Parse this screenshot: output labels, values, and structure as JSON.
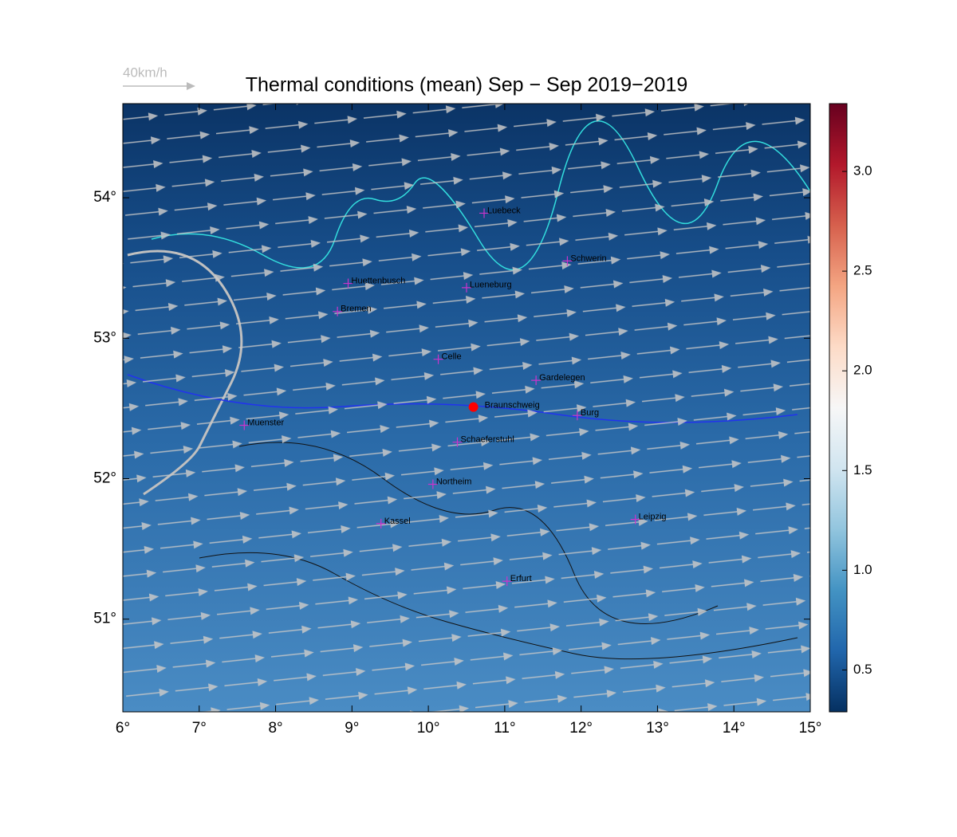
{
  "chart_data": {
    "type": "map",
    "title": "Thermal conditions (mean) Sep − Sep  2019−2019",
    "wind_scale_label": "40km/h",
    "xlim": [
      6,
      15
    ],
    "ylim": [
      50.34,
      54.67
    ],
    "xticks": [
      {
        "value": 6,
        "label": "6°"
      },
      {
        "value": 7,
        "label": "7°"
      },
      {
        "value": 8,
        "label": "8°"
      },
      {
        "value": 9,
        "label": "9°"
      },
      {
        "value": 10,
        "label": "10°"
      },
      {
        "value": 11,
        "label": "11°"
      },
      {
        "value": 12,
        "label": "12°"
      },
      {
        "value": 13,
        "label": "13°"
      },
      {
        "value": 14,
        "label": "14°"
      },
      {
        "value": 15,
        "label": "15°"
      }
    ],
    "yticks": [
      {
        "value": 51,
        "label": "51°"
      },
      {
        "value": 52,
        "label": "52°"
      },
      {
        "value": 53,
        "label": "53°"
      },
      {
        "value": 54,
        "label": "54°"
      }
    ],
    "clim": [
      0.29,
      3.34
    ],
    "cticks": [
      0.5,
      {
        "value": 1,
        "label": "1.0"
      },
      1.5,
      {
        "value": 2,
        "label": "2.0"
      },
      2.5,
      {
        "value": 3,
        "label": "3.0"
      }
    ],
    "colormap": [
      "#053061",
      "#2166ac",
      "#4393c3",
      "#92c5de",
      "#d1e5f0",
      "#f7f7f7",
      "#fddbc7",
      "#f4a582",
      "#d6604d",
      "#b2182b",
      "#67001f"
    ],
    "marker_color": "#cc33cc",
    "highlight_color": "#ff0000",
    "places": [
      {
        "name": "Luebeck",
        "lon": 10.73,
        "lat": 53.89
      },
      {
        "name": "Schwerin",
        "lon": 11.82,
        "lat": 53.55
      },
      {
        "name": "Huettenbusch",
        "lon": 8.95,
        "lat": 53.39
      },
      {
        "name": "Lueneburg",
        "lon": 10.5,
        "lat": 53.36
      },
      {
        "name": "Bremen",
        "lon": 8.81,
        "lat": 53.19
      },
      {
        "name": "Celle",
        "lon": 10.13,
        "lat": 52.85
      },
      {
        "name": "Gardelegen",
        "lon": 11.41,
        "lat": 52.7
      },
      {
        "name": "Braunschweig",
        "lon": 10.59,
        "lat": 52.51,
        "highlight": true
      },
      {
        "name": "Burg",
        "lon": 11.95,
        "lat": 52.45
      },
      {
        "name": "Muenster",
        "lon": 7.59,
        "lat": 52.38
      },
      {
        "name": "Schaeferstuhl",
        "lon": 10.38,
        "lat": 52.26
      },
      {
        "name": "Northeim",
        "lon": 10.06,
        "lat": 51.96
      },
      {
        "name": "Kassel",
        "lon": 9.38,
        "lat": 51.68
      },
      {
        "name": "Leipzig",
        "lon": 12.71,
        "lat": 51.71
      },
      {
        "name": "Erfurt",
        "lon": 11.03,
        "lat": 51.27
      }
    ]
  }
}
